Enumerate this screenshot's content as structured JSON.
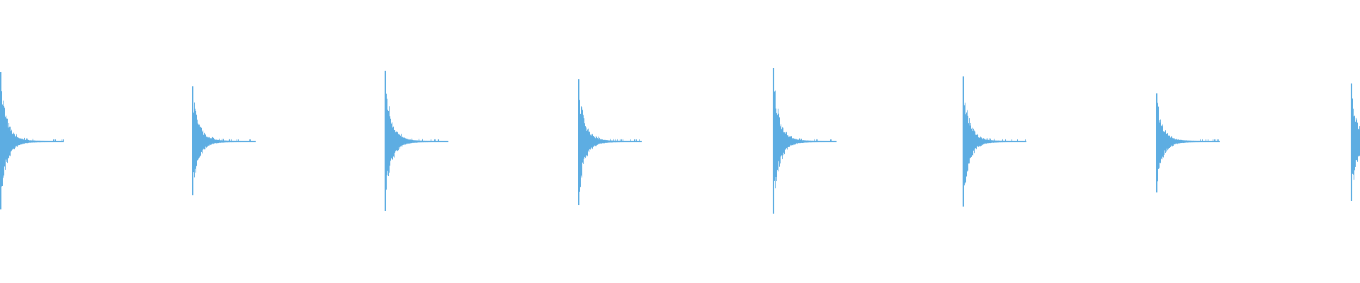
{
  "waveform": {
    "color": "#5dade2",
    "background": "#ffffff",
    "bursts": [
      {
        "onset_fraction": 0.0,
        "peak_up": 0.49,
        "peak_down": 0.48
      },
      {
        "onset_fraction": 0.141,
        "peak_up": 0.39,
        "peak_down": 0.38
      },
      {
        "onset_fraction": 0.283,
        "peak_up": 0.5,
        "peak_down": 0.49
      },
      {
        "onset_fraction": 0.425,
        "peak_up": 0.44,
        "peak_down": 0.45
      },
      {
        "onset_fraction": 0.568,
        "peak_up": 0.52,
        "peak_down": 0.51
      },
      {
        "onset_fraction": 0.708,
        "peak_up": 0.46,
        "peak_down": 0.46
      },
      {
        "onset_fraction": 0.85,
        "peak_up": 0.34,
        "peak_down": 0.36
      },
      {
        "onset_fraction": 0.993,
        "peak_up": 0.41,
        "peak_down": 0.42
      }
    ]
  }
}
